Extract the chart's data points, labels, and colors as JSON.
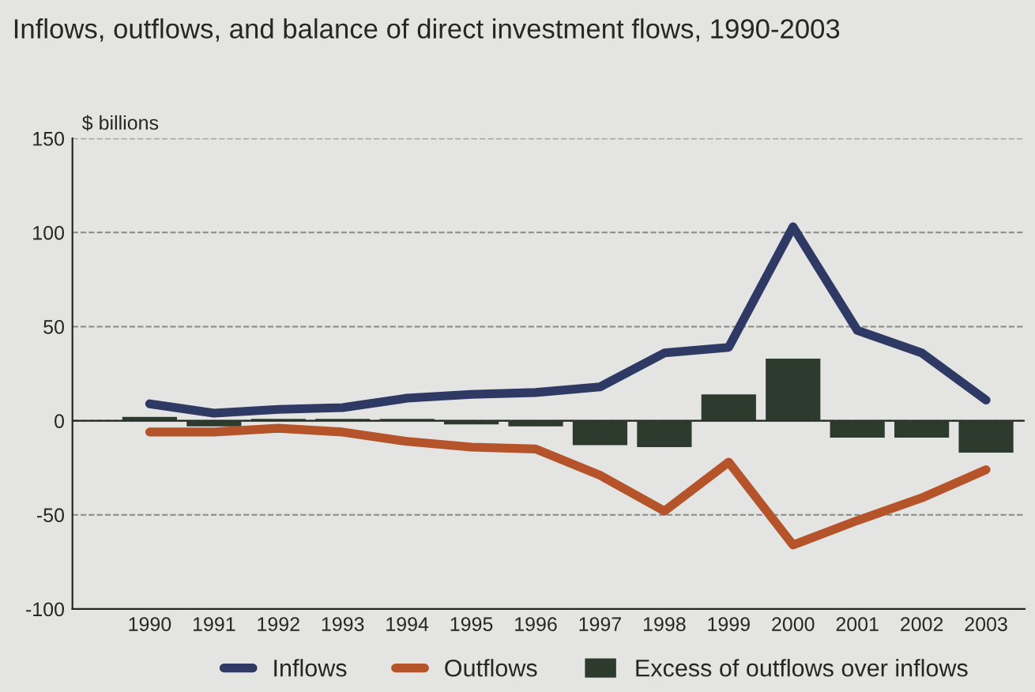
{
  "chart_data": {
    "type": "bar",
    "title": "Inflows, outflows, and balance of direct investment flows, 1990-2003",
    "ylabel": "$ billions",
    "categories": [
      "1990",
      "1991",
      "1992",
      "1993",
      "1994",
      "1995",
      "1996",
      "1997",
      "1998",
      "1999",
      "2000",
      "2001",
      "2002",
      "2003"
    ],
    "series": [
      {
        "name": "Inflows",
        "type": "line",
        "color": "#2e3a63",
        "values": [
          9,
          4,
          6,
          7,
          12,
          14,
          15,
          18,
          36,
          39,
          103,
          48,
          36,
          11
        ]
      },
      {
        "name": "Outflows",
        "type": "line",
        "color": "#b5532a",
        "values": [
          -6,
          -6,
          -4,
          -6,
          -11,
          -14,
          -15,
          -29,
          -48,
          -22,
          -66,
          -53,
          -41,
          -26
        ]
      },
      {
        "name": "Excess of outflows over inflows",
        "color": "#2d3a2e",
        "values": [
          2,
          -3,
          1,
          1,
          1,
          -2,
          -3,
          -13,
          -14,
          14,
          33,
          -9,
          -9,
          -17
        ]
      }
    ],
    "ylim": [
      -100,
      150
    ],
    "yticks": [
      -100,
      -50,
      0,
      50,
      100,
      150
    ],
    "grid": "y",
    "legend": "bottom",
    "line_style": "solid",
    "marker": "none"
  }
}
